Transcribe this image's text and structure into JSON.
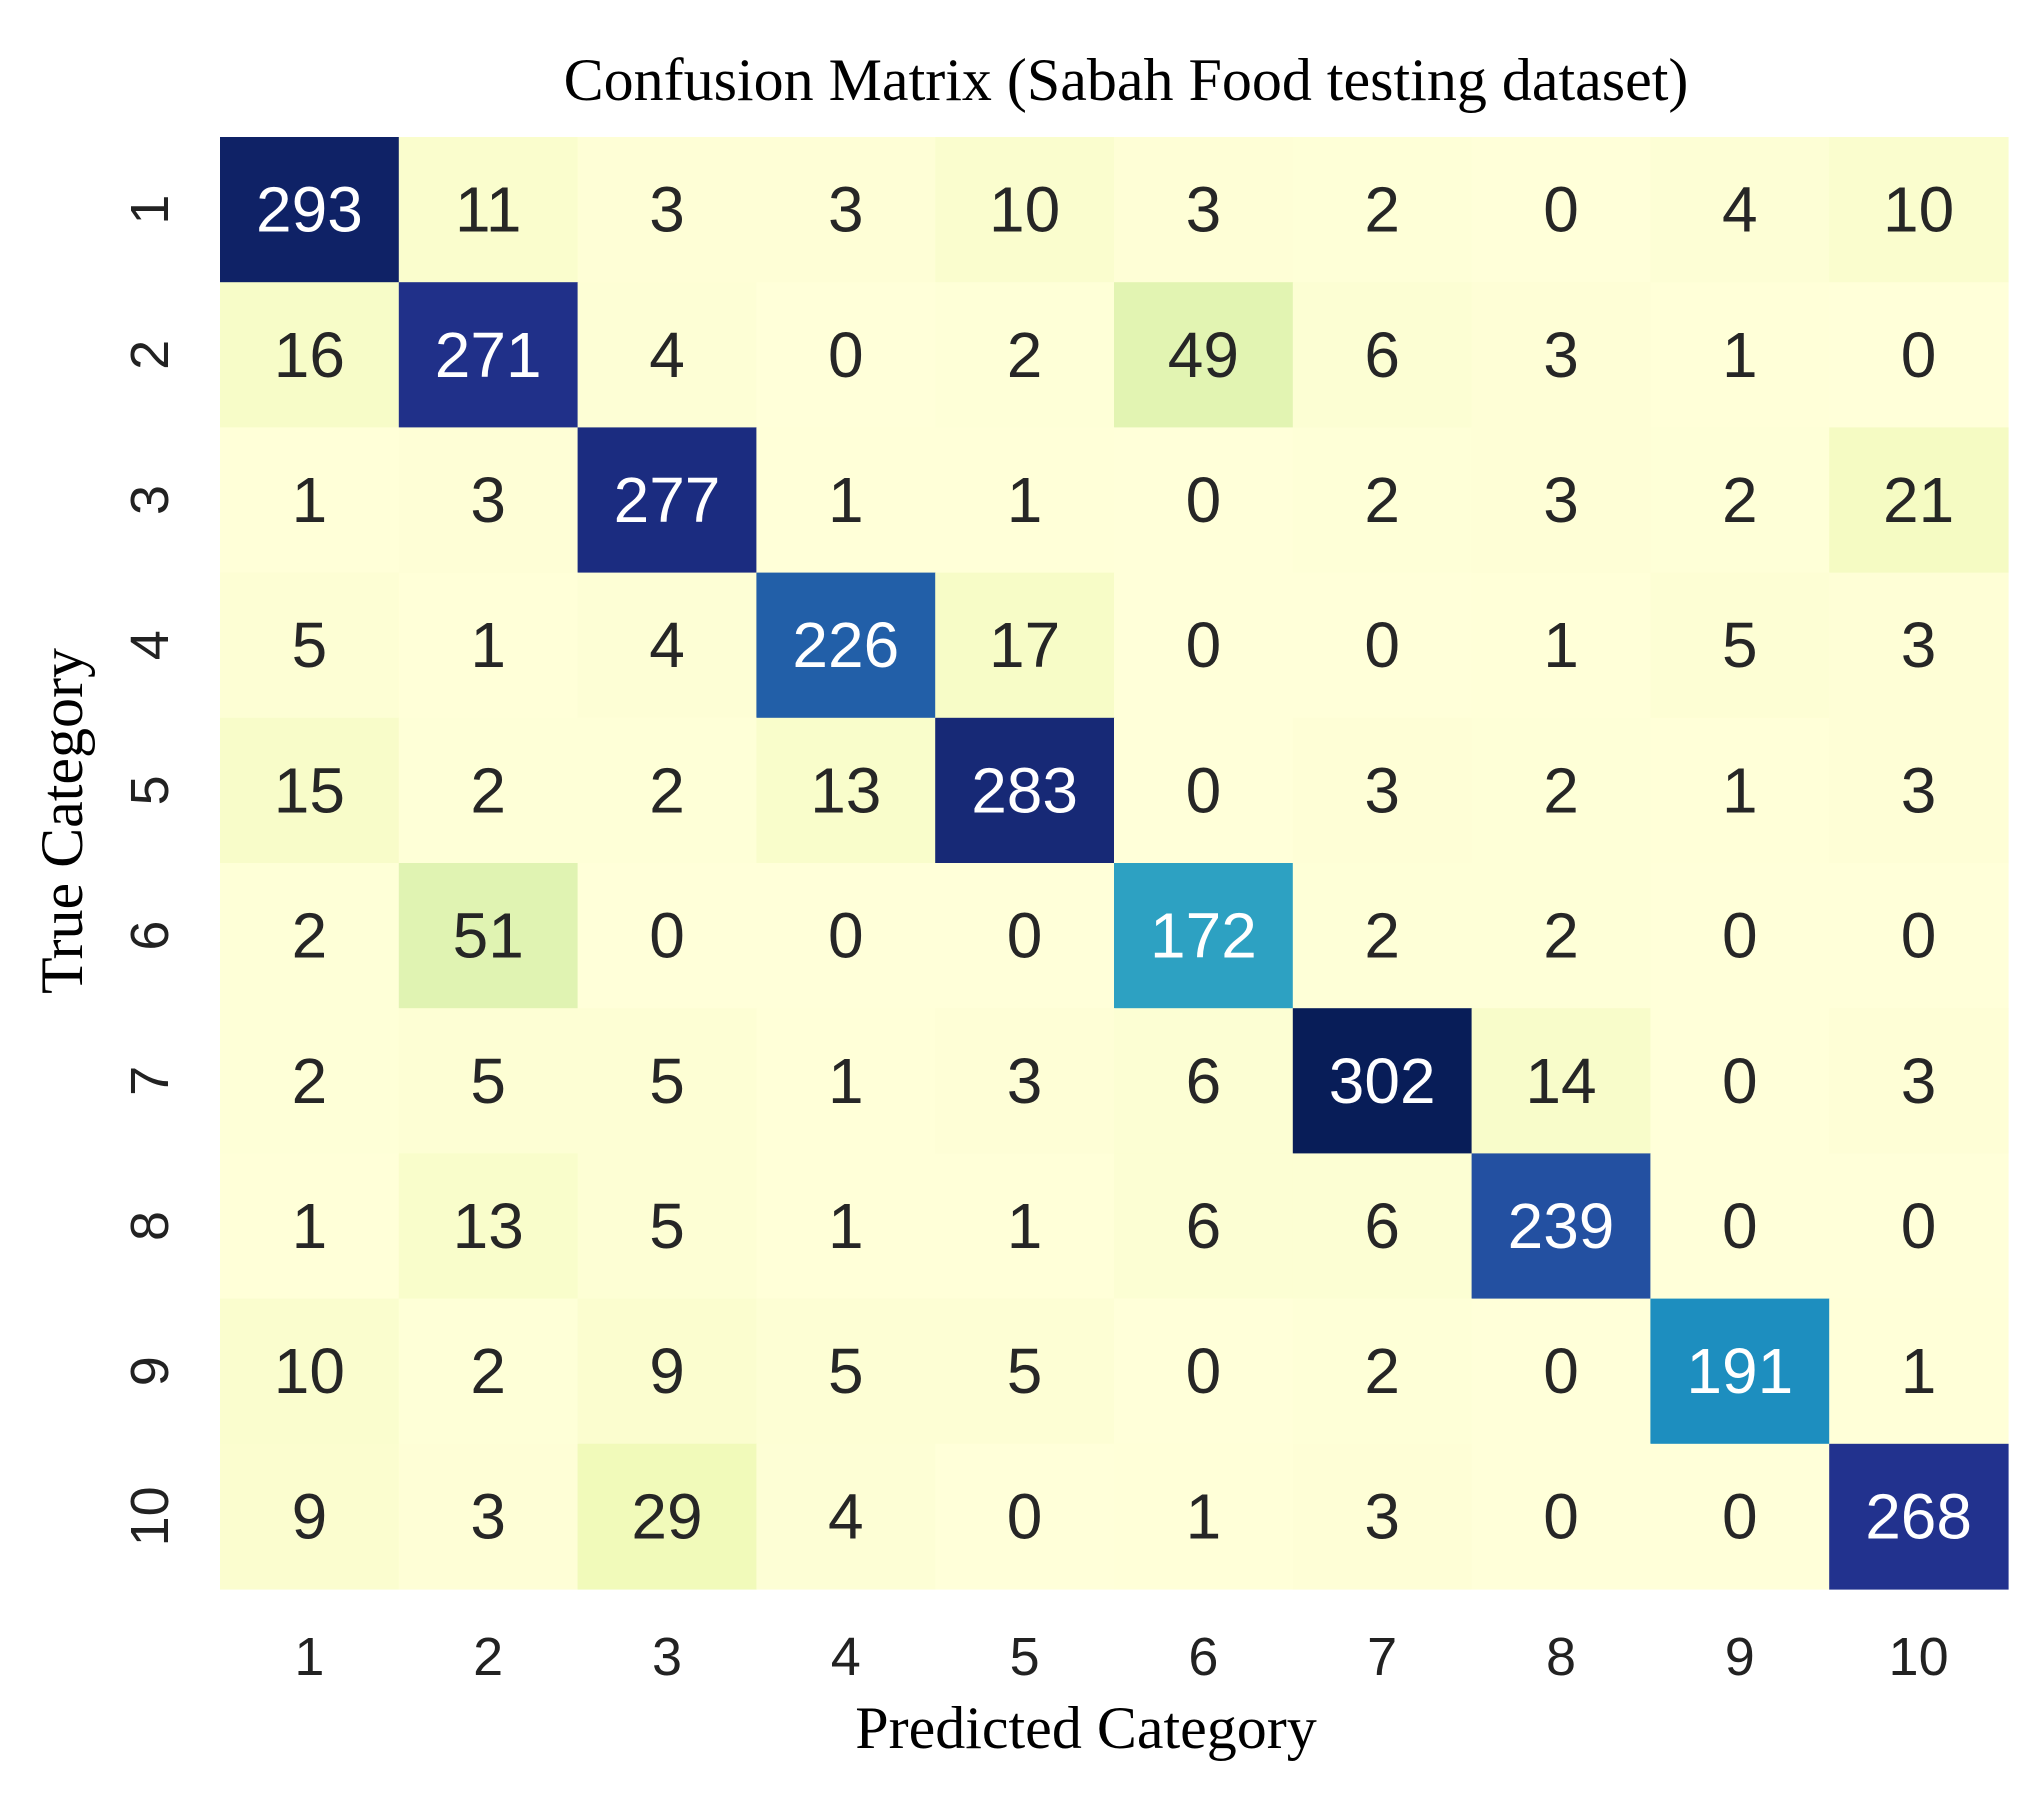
{
  "chart_data": {
    "type": "heatmap",
    "title": "Confusion Matrix (Sabah Food testing dataset)",
    "xlabel": "Predicted Category",
    "ylabel": "True Category",
    "x_categories": [
      "1",
      "2",
      "3",
      "4",
      "5",
      "6",
      "7",
      "8",
      "9",
      "10"
    ],
    "y_categories": [
      "1",
      "2",
      "3",
      "4",
      "5",
      "6",
      "7",
      "8",
      "9",
      "10"
    ],
    "values": [
      [
        293,
        11,
        3,
        3,
        10,
        3,
        2,
        0,
        4,
        10
      ],
      [
        16,
        271,
        4,
        0,
        2,
        49,
        6,
        3,
        1,
        0
      ],
      [
        1,
        3,
        277,
        1,
        1,
        0,
        2,
        3,
        2,
        21
      ],
      [
        5,
        1,
        4,
        226,
        17,
        0,
        0,
        1,
        5,
        3
      ],
      [
        15,
        2,
        2,
        13,
        283,
        0,
        3,
        2,
        1,
        3
      ],
      [
        2,
        51,
        0,
        0,
        0,
        172,
        2,
        2,
        0,
        0
      ],
      [
        2,
        5,
        5,
        1,
        3,
        6,
        302,
        14,
        0,
        3
      ],
      [
        1,
        13,
        5,
        1,
        1,
        6,
        6,
        239,
        0,
        0
      ],
      [
        10,
        2,
        9,
        5,
        5,
        0,
        2,
        0,
        191,
        1
      ],
      [
        9,
        3,
        29,
        4,
        0,
        1,
        3,
        0,
        0,
        268
      ]
    ],
    "colormap": "YlGnBu",
    "colorbar": false,
    "grid": false
  }
}
